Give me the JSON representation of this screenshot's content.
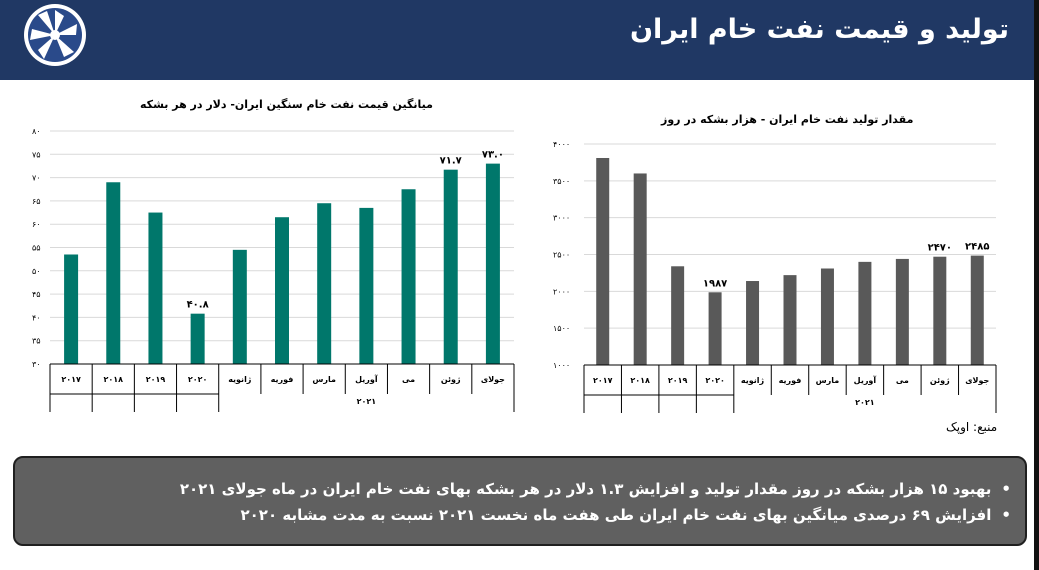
{
  "header": {
    "title": "تولید و قیمت نفت خام ایران"
  },
  "colors": {
    "header_bg": "#203864",
    "bar_left": "#00776b",
    "bar_right": "#595959",
    "summary_bg": "#606060"
  },
  "chart_data": [
    {
      "type": "bar",
      "title": "میانگین قیمت نفت خام سنگین ایران- دلار در هر بشکه",
      "categories": [
        "2017",
        "2018",
        "2019",
        "2020",
        "ژانویه",
        "فوریه",
        "مارس",
        "آوریل",
        "می",
        "ژوئن",
        "جولای"
      ],
      "category_labels": [
        "۲۰۱۷",
        "۲۰۱۸",
        "۲۰۱۹",
        "۲۰۲۰",
        "ژانویه",
        "فوریه",
        "مارس",
        "آوریل",
        "می",
        "ژوئن",
        "جولای"
      ],
      "group_label": "۲۰۲۱",
      "values": [
        53.5,
        69,
        62.5,
        40.8,
        54.5,
        61.5,
        64.5,
        63.5,
        67.5,
        71.7,
        73.0
      ],
      "data_labels": {
        "3": "۴۰.۸",
        "9": "۷۱.۷",
        "10": "۷۳.۰"
      },
      "ylim": [
        30,
        80
      ],
      "yticks": [
        30,
        35,
        40,
        45,
        50,
        55,
        60,
        65,
        70,
        75,
        80
      ],
      "ytick_labels": [
        "۳۰",
        "۳۵",
        "۴۰",
        "۴۵",
        "۵۰",
        "۵۵",
        "۶۰",
        "۶۵",
        "۷۰",
        "۷۵",
        "۸۰"
      ],
      "grid": true
    },
    {
      "type": "bar",
      "title": "مقدار تولید نفت خام ایران - هزار بشکه در روز",
      "categories": [
        "2017",
        "2018",
        "2019",
        "2020",
        "ژانویه",
        "فوریه",
        "مارس",
        "آوریل",
        "می",
        "ژوئن",
        "جولای"
      ],
      "category_labels": [
        "۲۰۱۷",
        "۲۰۱۸",
        "۲۰۱۹",
        "۲۰۲۰",
        "ژانویه",
        "فوریه",
        "مارس",
        "آوریل",
        "می",
        "ژوئن",
        "جولای"
      ],
      "group_label": "۲۰۲۱",
      "values": [
        3810,
        3600,
        2340,
        1987,
        2140,
        2220,
        2310,
        2400,
        2440,
        2470,
        2485
      ],
      "data_labels": {
        "3": "۱۹۸۷",
        "9": "۲۴۷۰",
        "10": "۲۴۸۵"
      },
      "ylim": [
        1000,
        4000
      ],
      "yticks": [
        1000,
        1500,
        2000,
        2500,
        3000,
        3500,
        4000
      ],
      "ytick_labels": [
        "۱۰۰۰",
        "۱۵۰۰",
        "۲۰۰۰",
        "۲۵۰۰",
        "۳۰۰۰",
        "۳۵۰۰",
        "۴۰۰۰"
      ],
      "grid": true
    }
  ],
  "source": "منبع: اوپک",
  "summary": {
    "bullets": [
      "بهبود ۱۵ هزار بشکه در روز مقدار تولید و افزایش ۱.۳ دلار در هر بشکه بهای نفت خام ایران در ماه جولای ۲۰۲۱",
      "افزایش ۶۹ درصدی میانگین بهای نفت خام ایران طی هفت ماه نخست ۲۰۲۱ نسبت به مدت مشابه ۲۰۲۰"
    ]
  }
}
